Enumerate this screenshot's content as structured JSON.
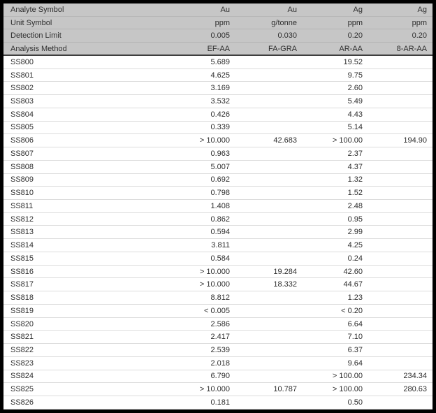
{
  "colors": {
    "header_bg": "#c6c6c6",
    "frame_border": "#000000",
    "row_divider": "#dcdcdc",
    "header_divider": "#3f3f3f",
    "text": "#2e2e2e"
  },
  "table": {
    "header_rows": [
      {
        "label": "Analyte Symbol",
        "values": [
          "Au",
          "Au",
          "Ag",
          "Ag"
        ]
      },
      {
        "label": "Unit Symbol",
        "values": [
          "ppm",
          "g/tonne",
          "ppm",
          "ppm"
        ]
      },
      {
        "label": "Detection Limit",
        "values": [
          "0.005",
          "0.030",
          "0.20",
          "0.20"
        ]
      },
      {
        "label": "Analysis Method",
        "values": [
          "EF-AA",
          "FA-GRA",
          "AR-AA",
          "8-AR-AA"
        ]
      }
    ],
    "samples": [
      {
        "id": "SS800",
        "values": [
          "5.689",
          "",
          "19.52",
          ""
        ]
      },
      {
        "id": "SS801",
        "values": [
          "4.625",
          "",
          "9.75",
          ""
        ]
      },
      {
        "id": "SS802",
        "values": [
          "3.169",
          "",
          "2.60",
          ""
        ]
      },
      {
        "id": "SS803",
        "values": [
          "3.532",
          "",
          "5.49",
          ""
        ]
      },
      {
        "id": "SS804",
        "values": [
          "0.426",
          "",
          "4.43",
          ""
        ]
      },
      {
        "id": "SS805",
        "values": [
          "0.339",
          "",
          "5.14",
          ""
        ]
      },
      {
        "id": "SS806",
        "values": [
          "> 10.000",
          "42.683",
          "> 100.00",
          "194.90"
        ]
      },
      {
        "id": "SS807",
        "values": [
          "0.963",
          "",
          "2.37",
          ""
        ]
      },
      {
        "id": "SS808",
        "values": [
          "5.007",
          "",
          "4.37",
          ""
        ]
      },
      {
        "id": "SS809",
        "values": [
          "0.692",
          "",
          "1.32",
          ""
        ]
      },
      {
        "id": "SS810",
        "values": [
          "0.798",
          "",
          "1.52",
          ""
        ]
      },
      {
        "id": "SS811",
        "values": [
          "1.408",
          "",
          "2.48",
          ""
        ]
      },
      {
        "id": "SS812",
        "values": [
          "0.862",
          "",
          "0.95",
          ""
        ]
      },
      {
        "id": "SS813",
        "values": [
          "0.594",
          "",
          "2.99",
          ""
        ]
      },
      {
        "id": "SS814",
        "values": [
          "3.811",
          "",
          "4.25",
          ""
        ]
      },
      {
        "id": "SS815",
        "values": [
          "0.584",
          "",
          "0.24",
          ""
        ]
      },
      {
        "id": "SS816",
        "values": [
          "> 10.000",
          "19.284",
          "42.60",
          ""
        ]
      },
      {
        "id": "SS817",
        "values": [
          "> 10.000",
          "18.332",
          "44.67",
          ""
        ]
      },
      {
        "id": "SS818",
        "values": [
          "8.812",
          "",
          "1.23",
          ""
        ]
      },
      {
        "id": "SS819",
        "values": [
          "< 0.005",
          "",
          "< 0.20",
          ""
        ]
      },
      {
        "id": "SS820",
        "values": [
          "2.586",
          "",
          "6.64",
          ""
        ]
      },
      {
        "id": "SS821",
        "values": [
          "2.417",
          "",
          "7.10",
          ""
        ]
      },
      {
        "id": "SS822",
        "values": [
          "2.539",
          "",
          "6.37",
          ""
        ]
      },
      {
        "id": "SS823",
        "values": [
          "2.018",
          "",
          "9.64",
          ""
        ]
      },
      {
        "id": "SS824",
        "values": [
          "6.790",
          "",
          "> 100.00",
          "234.34"
        ]
      },
      {
        "id": "SS825",
        "values": [
          "> 10.000",
          "10.787",
          "> 100.00",
          "280.63"
        ]
      },
      {
        "id": "SS826",
        "values": [
          "0.181",
          "",
          "0.50",
          ""
        ]
      }
    ]
  }
}
